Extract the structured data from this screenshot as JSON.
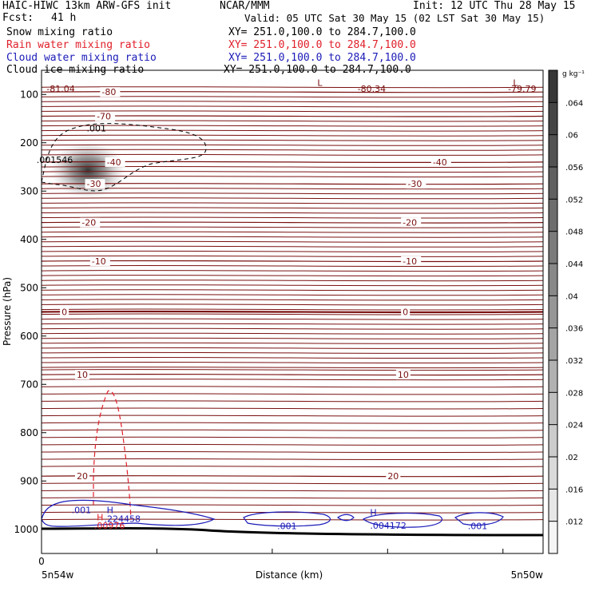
{
  "header": {
    "model": "HAIC-HIWC 13km ARW-GFS init",
    "org": "NCAR/MMM",
    "init": "Init: 12 UTC Thu 28 May 15",
    "fcst_label": "Fcst:",
    "fcst_value": "41 h",
    "valid": "Valid: 05 UTC Sat 30 May 15 (02 LST Sat 30 May 15)"
  },
  "fields": [
    {
      "name": "Snow mixing ratio",
      "xy": "XY= 251.0,100.0 to 284.7,100.0",
      "color": "#000000"
    },
    {
      "name": "Rain water mixing ratio",
      "xy": "XY= 251.0,100.0 to 284.7,100.0",
      "color": "#e0202a"
    },
    {
      "name": "Cloud water mixing ratio",
      "xy": "XY= 251.0,100.0 to 284.7,100.0",
      "color": "#1a1ab8"
    },
    {
      "name": "Cloud ice mixing ratio",
      "xy": "XY= 251.0,100.0 to 284.7,100.0",
      "color": "#000000"
    }
  ],
  "chart_data": {
    "type": "contour",
    "xlabel": "Distance (km)",
    "ylabel": "Pressure (hPa)",
    "x_start_label": "5n54w",
    "x_end_label": "5n50w",
    "x_tick_labels": [
      "0"
    ],
    "ylim": [
      1050,
      50
    ],
    "y_ticks": [
      100,
      200,
      300,
      400,
      500,
      600,
      700,
      800,
      900,
      1000
    ],
    "colorbar": {
      "unit": "g kg⁻¹",
      "ticks": [
        ".012",
        ".016",
        ".02",
        ".024",
        ".028",
        ".032",
        ".036",
        ".04",
        ".044",
        ".048",
        ".052",
        ".056",
        ".06",
        ".064"
      ],
      "min": 0.008,
      "max": 0.068
    },
    "temperature_contours": {
      "color": "#7a1010",
      "levels": [
        {
          "label": "-80",
          "p": 95
        },
        {
          "label": "-70",
          "p": 145
        },
        {
          "label": "-40",
          "p": 240
        },
        {
          "label": "-30",
          "p": 285
        },
        {
          "label": "-20",
          "p": 365
        },
        {
          "label": "-10",
          "p": 445
        },
        {
          "label": "0",
          "p": 550
        },
        {
          "label": "10",
          "p": 680
        },
        {
          "label": "20",
          "p": 890
        }
      ],
      "extra_pressures": [
        85,
        105,
        115,
        125,
        135,
        155,
        165,
        175,
        185,
        195,
        205,
        215,
        225,
        250,
        260,
        270,
        295,
        305,
        315,
        325,
        335,
        345,
        355,
        375,
        385,
        395,
        405,
        415,
        425,
        435,
        455,
        465,
        475,
        485,
        495,
        505,
        515,
        525,
        535,
        545,
        555,
        565,
        575,
        585,
        595,
        605,
        615,
        625,
        635,
        645,
        655,
        665,
        670,
        690,
        705,
        720,
        735,
        750,
        765,
        780,
        795,
        810,
        825,
        840,
        855,
        870,
        905,
        920,
        935,
        950,
        965,
        980
      ]
    },
    "annotations": [
      {
        "text": "L",
        "color": "#7a1010",
        "x": 0.55,
        "p": 76
      },
      {
        "text": "-81.04",
        "color": "#7a1010",
        "x": 0.01,
        "p": 88
      },
      {
        "text": "-80.34",
        "color": "#7a1010",
        "x": 0.63,
        "p": 88
      },
      {
        "text": "L",
        "color": "#7a1010",
        "x": 0.94,
        "p": 76
      },
      {
        "text": "-79.79",
        "color": "#7a1010",
        "x": 0.93,
        "p": 88
      },
      {
        "text": ".001",
        "color": "#000000",
        "x": 0.09,
        "p": 170
      },
      {
        "text": ".001546",
        "color": "#000000",
        "x": -0.01,
        "p": 235
      },
      {
        "text": ".001",
        "color": "#1a1ab8",
        "x": 0.06,
        "p": 960
      },
      {
        "text": "H",
        "color": "#1a1ab8",
        "x": 0.13,
        "p": 960
      },
      {
        "text": "H",
        "color": "#e0202a",
        "x": 0.11,
        "p": 975
      },
      {
        "text": ".224458",
        "color": "#1a1ab8",
        "x": 0.125,
        "p": 978
      },
      {
        "text": ".00976",
        "color": "#e0202a",
        "x": 0.105,
        "p": 992
      },
      {
        "text": ".001",
        "color": "#1a1ab8",
        "x": 0.47,
        "p": 993
      },
      {
        "text": "H",
        "color": "#1a1ab8",
        "x": 0.655,
        "p": 965
      },
      {
        "text": ".004172",
        "color": "#1a1ab8",
        "x": 0.655,
        "p": 992
      },
      {
        "text": ".001",
        "color": "#1a1ab8",
        "x": 0.85,
        "p": 993
      }
    ]
  }
}
